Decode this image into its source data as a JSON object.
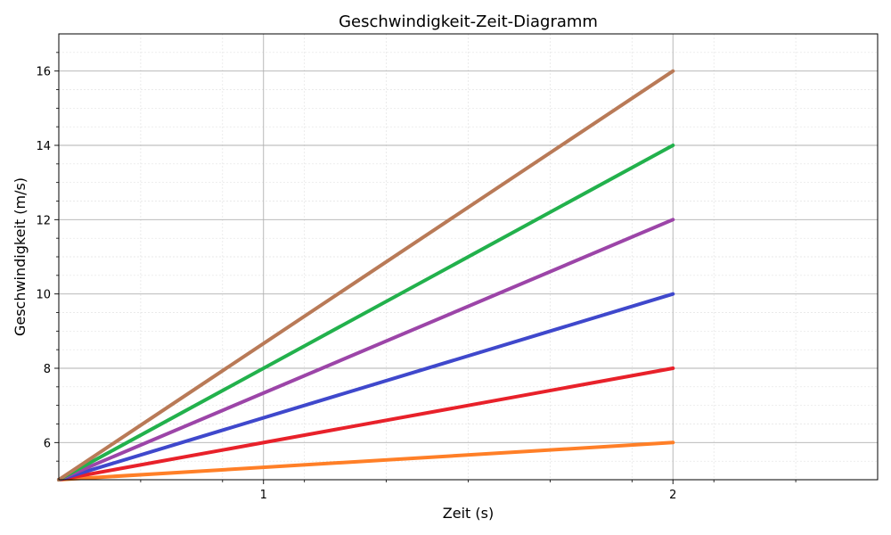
{
  "chart_data": {
    "type": "line",
    "title": "Geschwindigkeit-Zeit-Diagramm",
    "xlabel": "Zeit (s)",
    "ylabel": "Geschwindigkeit (m/s)",
    "xlim": [
      0.5,
      2.5
    ],
    "ylim": [
      5,
      17
    ],
    "x_major_ticks": [
      1,
      2
    ],
    "x_minor_step": 0.2,
    "y_major_ticks": [
      6,
      8,
      10,
      12,
      14,
      16
    ],
    "y_minor_step": 0.5,
    "grid": true,
    "series": [
      {
        "color": "#ff7f27",
        "x": [
          0.5,
          2
        ],
        "y": [
          5,
          6
        ]
      },
      {
        "color": "#e8212a",
        "x": [
          0.5,
          2
        ],
        "y": [
          5,
          8
        ]
      },
      {
        "color": "#3f48cc",
        "x": [
          0.5,
          2
        ],
        "y": [
          5,
          10
        ]
      },
      {
        "color": "#9c45a8",
        "x": [
          0.5,
          2
        ],
        "y": [
          5,
          12
        ]
      },
      {
        "color": "#22b14c",
        "x": [
          0.5,
          2
        ],
        "y": [
          5,
          14
        ]
      },
      {
        "color": "#b97a57",
        "x": [
          0.5,
          2
        ],
        "y": [
          5,
          16
        ]
      }
    ]
  }
}
